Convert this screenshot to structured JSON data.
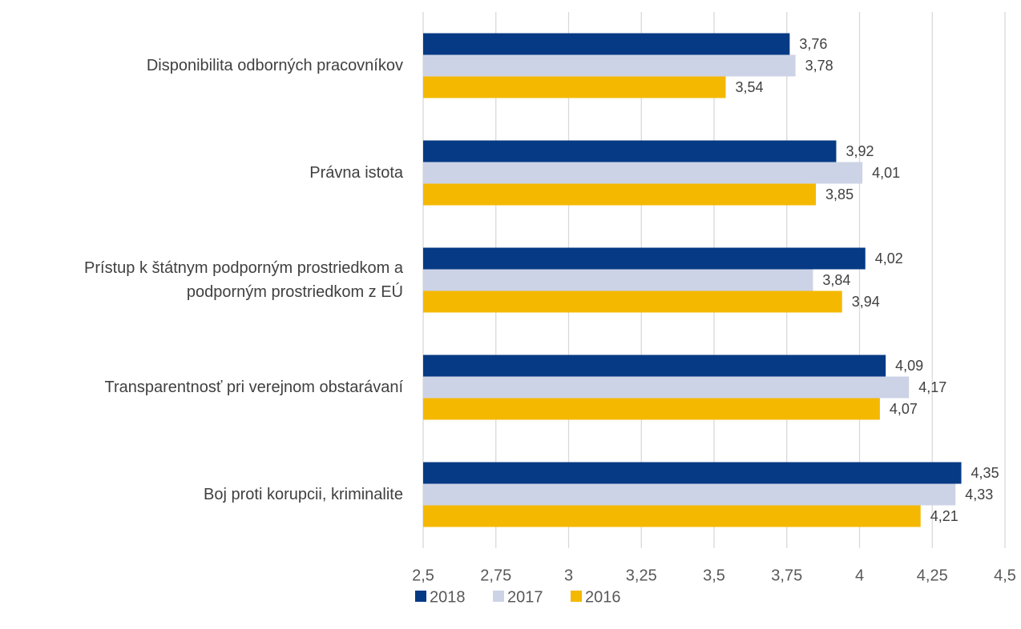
{
  "chart_data": {
    "type": "hbar",
    "categories": [
      "Disponibilita odborných pracovníkov",
      "Právna istota",
      "Prístup k štátnym podporným prostriedkom a podporným prostriedkom z EÚ",
      "Transparentnosť pri verejnom obstarávaní",
      "Boj proti korupcii, kriminalite"
    ],
    "series": [
      {
        "name": "2018",
        "color": "#063a84",
        "values": [
          3.76,
          3.92,
          4.02,
          4.09,
          4.35
        ],
        "value_labels": [
          "3,76",
          "3,92",
          "4,02",
          "4,09",
          "4,35"
        ]
      },
      {
        "name": "2017",
        "color": "#cdd3e6",
        "values": [
          3.78,
          4.01,
          3.84,
          4.17,
          4.33
        ],
        "value_labels": [
          "3,78",
          "4,01",
          "3,84",
          "4,17",
          "4,33"
        ]
      },
      {
        "name": "2016",
        "color": "#f5b800",
        "values": [
          3.54,
          3.85,
          3.94,
          4.07,
          4.21
        ],
        "value_labels": [
          "3,54",
          "3,85",
          "3,94",
          "4,07",
          "4,21"
        ]
      }
    ],
    "xlim": [
      2.5,
      4.5
    ],
    "xticks": [
      {
        "value": 2.5,
        "label": "2,5"
      },
      {
        "value": 2.75,
        "label": "2,75"
      },
      3,
      {
        "value": 3.25,
        "label": "3,25"
      },
      {
        "value": 3.5,
        "label": "3,5"
      },
      {
        "value": 3.75,
        "label": "3,75"
      },
      4,
      {
        "value": 4.25,
        "label": "4,25"
      },
      {
        "value": 4.5,
        "label": "4,5"
      }
    ],
    "grid": true,
    "legend": "bottom"
  }
}
